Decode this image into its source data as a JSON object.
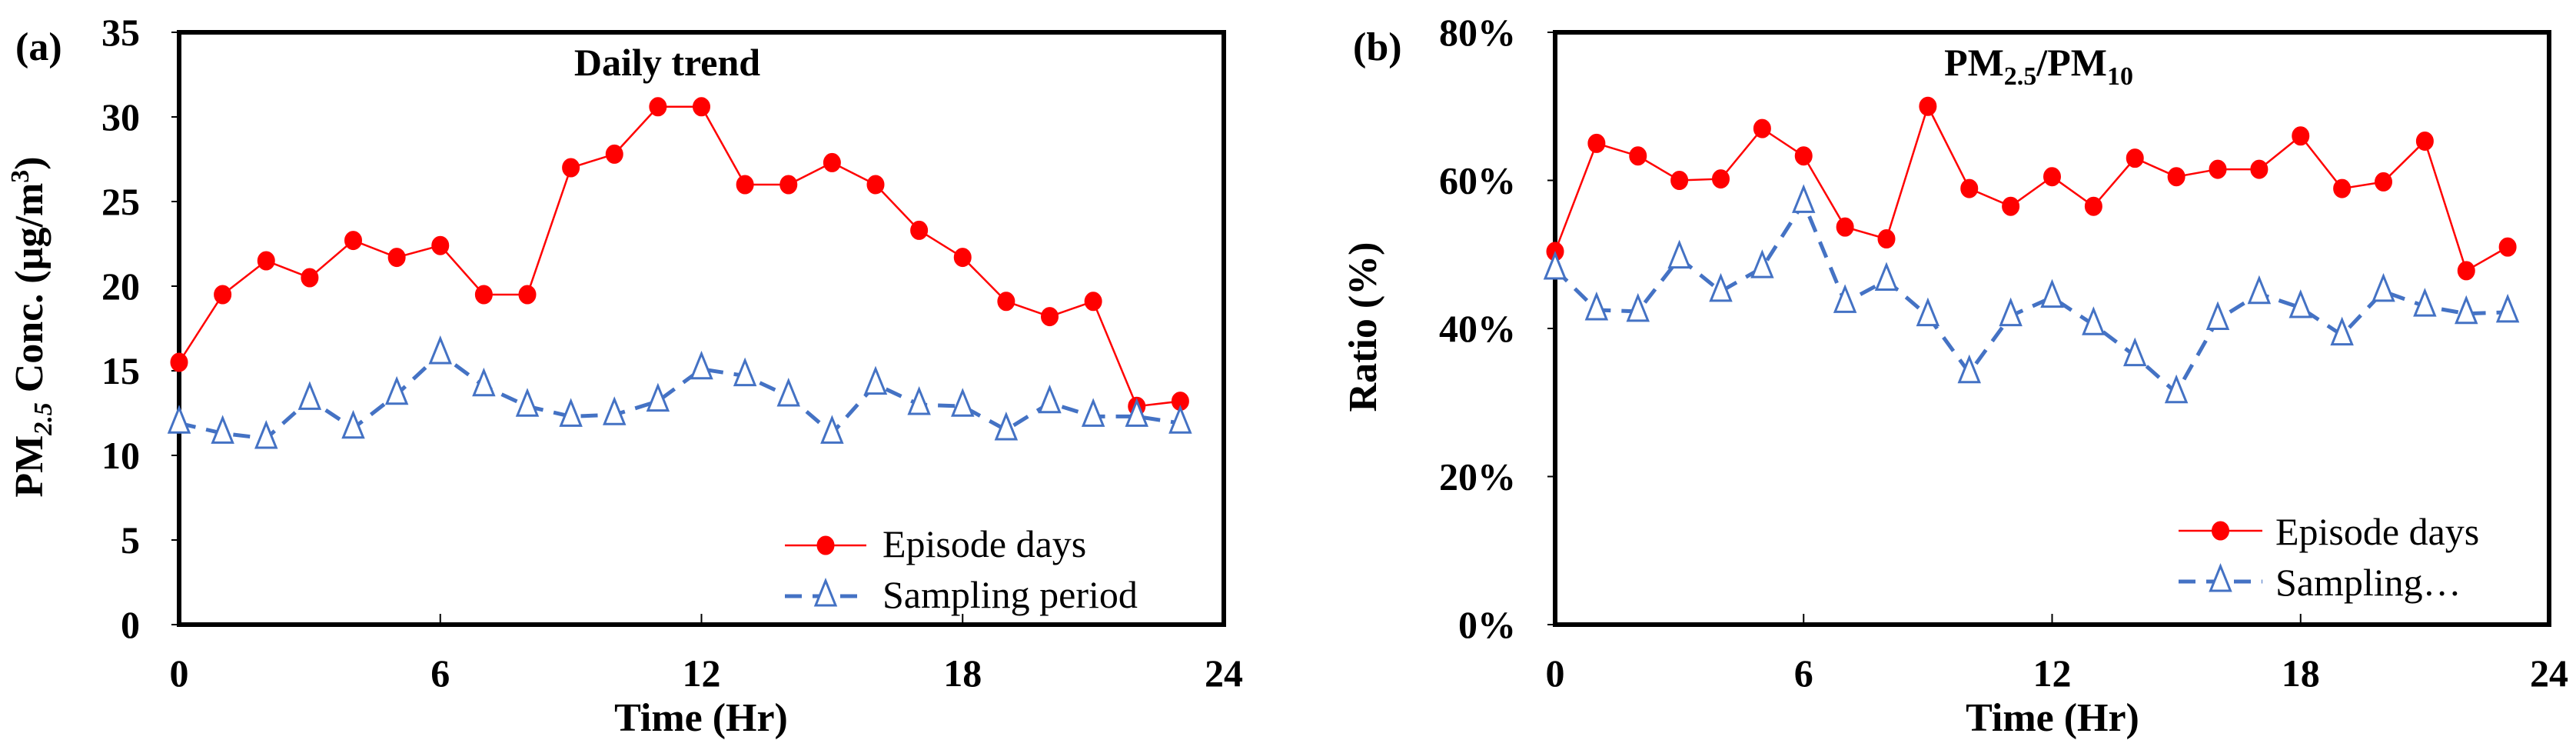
{
  "chart_data": [
    {
      "type": "line",
      "panel_label": "(a)",
      "title": "Daily trend",
      "xlabel": "Time (Hr)",
      "ylabel": "PM2.5 Conc. (µg/m3)",
      "ylabel_parts": {
        "pre": "PM",
        "sub": "2.5",
        "mid": " Conc. (µg/m",
        "sup": "3",
        "post": ")"
      },
      "xlim": [
        0,
        24
      ],
      "ylim": [
        0,
        35
      ],
      "xticks": [
        0,
        6,
        12,
        18,
        24
      ],
      "yticks": [
        0,
        5,
        10,
        15,
        20,
        25,
        30,
        35
      ],
      "ytick_labels": [
        "0",
        "5",
        "10",
        "15",
        "20",
        "25",
        "30",
        "35"
      ],
      "x": [
        0,
        1,
        2,
        3,
        4,
        5,
        6,
        7,
        8,
        9,
        10,
        11,
        12,
        13,
        14,
        15,
        16,
        17,
        18,
        19,
        20,
        21,
        22,
        23
      ],
      "legend_position": "bottom-right",
      "series": [
        {
          "name": "Episode days",
          "color": "#FF0000",
          "marker": "circle",
          "style": "solid",
          "values": [
            15.5,
            19.5,
            21.5,
            20.5,
            22.7,
            21.7,
            22.4,
            19.5,
            19.5,
            27.0,
            27.8,
            30.6,
            30.6,
            26.0,
            26.0,
            27.3,
            26.0,
            23.3,
            21.7,
            19.1,
            18.2,
            19.1,
            12.9,
            13.2
          ]
        },
        {
          "name": "Sampling period",
          "color": "#4472C4",
          "marker": "triangle-open",
          "style": "dashed",
          "values": [
            11.9,
            11.3,
            11.0,
            13.3,
            11.6,
            13.6,
            16.0,
            14.1,
            12.9,
            12.3,
            12.4,
            13.2,
            15.1,
            14.7,
            13.5,
            11.3,
            14.2,
            13.0,
            12.9,
            11.5,
            13.1,
            12.3,
            12.3,
            11.9
          ]
        }
      ]
    },
    {
      "type": "line",
      "panel_label": "(b)",
      "title": "PM2.5/PM10",
      "title_parts": {
        "a": "PM",
        "sub1": "2.5",
        "b": "/PM",
        "sub2": "10"
      },
      "xlabel": "Time (Hr)",
      "ylabel": "Ratio (%)",
      "xlim": [
        0,
        24
      ],
      "ylim": [
        0,
        80
      ],
      "xticks": [
        0,
        6,
        12,
        18,
        24
      ],
      "yticks": [
        0,
        20,
        40,
        60,
        80
      ],
      "ytick_labels": [
        "0%",
        "20%",
        "40%",
        "60%",
        "80%"
      ],
      "x": [
        0,
        1,
        2,
        3,
        4,
        5,
        6,
        7,
        8,
        9,
        10,
        11,
        12,
        13,
        14,
        15,
        16,
        17,
        18,
        19,
        20,
        21,
        22,
        23
      ],
      "legend_position": "bottom-right",
      "series": [
        {
          "name": "Episode days",
          "color": "#FF0000",
          "marker": "circle",
          "style": "solid",
          "values": [
            50.4,
            65.0,
            63.3,
            60.0,
            60.2,
            67.0,
            63.3,
            53.7,
            52.1,
            70.0,
            58.9,
            56.5,
            60.5,
            56.5,
            63.0,
            60.5,
            61.5,
            61.5,
            66.0,
            58.9,
            59.8,
            65.3,
            47.8,
            51.0
          ]
        },
        {
          "name": "Sampling…",
          "color": "#4472C4",
          "marker": "triangle-open",
          "style": "dashed",
          "values": [
            48.0,
            42.5,
            42.3,
            49.5,
            45.0,
            48.2,
            57.0,
            43.5,
            46.5,
            41.7,
            34.0,
            41.7,
            44.2,
            40.5,
            36.3,
            31.3,
            41.2,
            44.7,
            42.8,
            39.1,
            45.0,
            43.0,
            42.0,
            42.2
          ]
        }
      ]
    }
  ]
}
